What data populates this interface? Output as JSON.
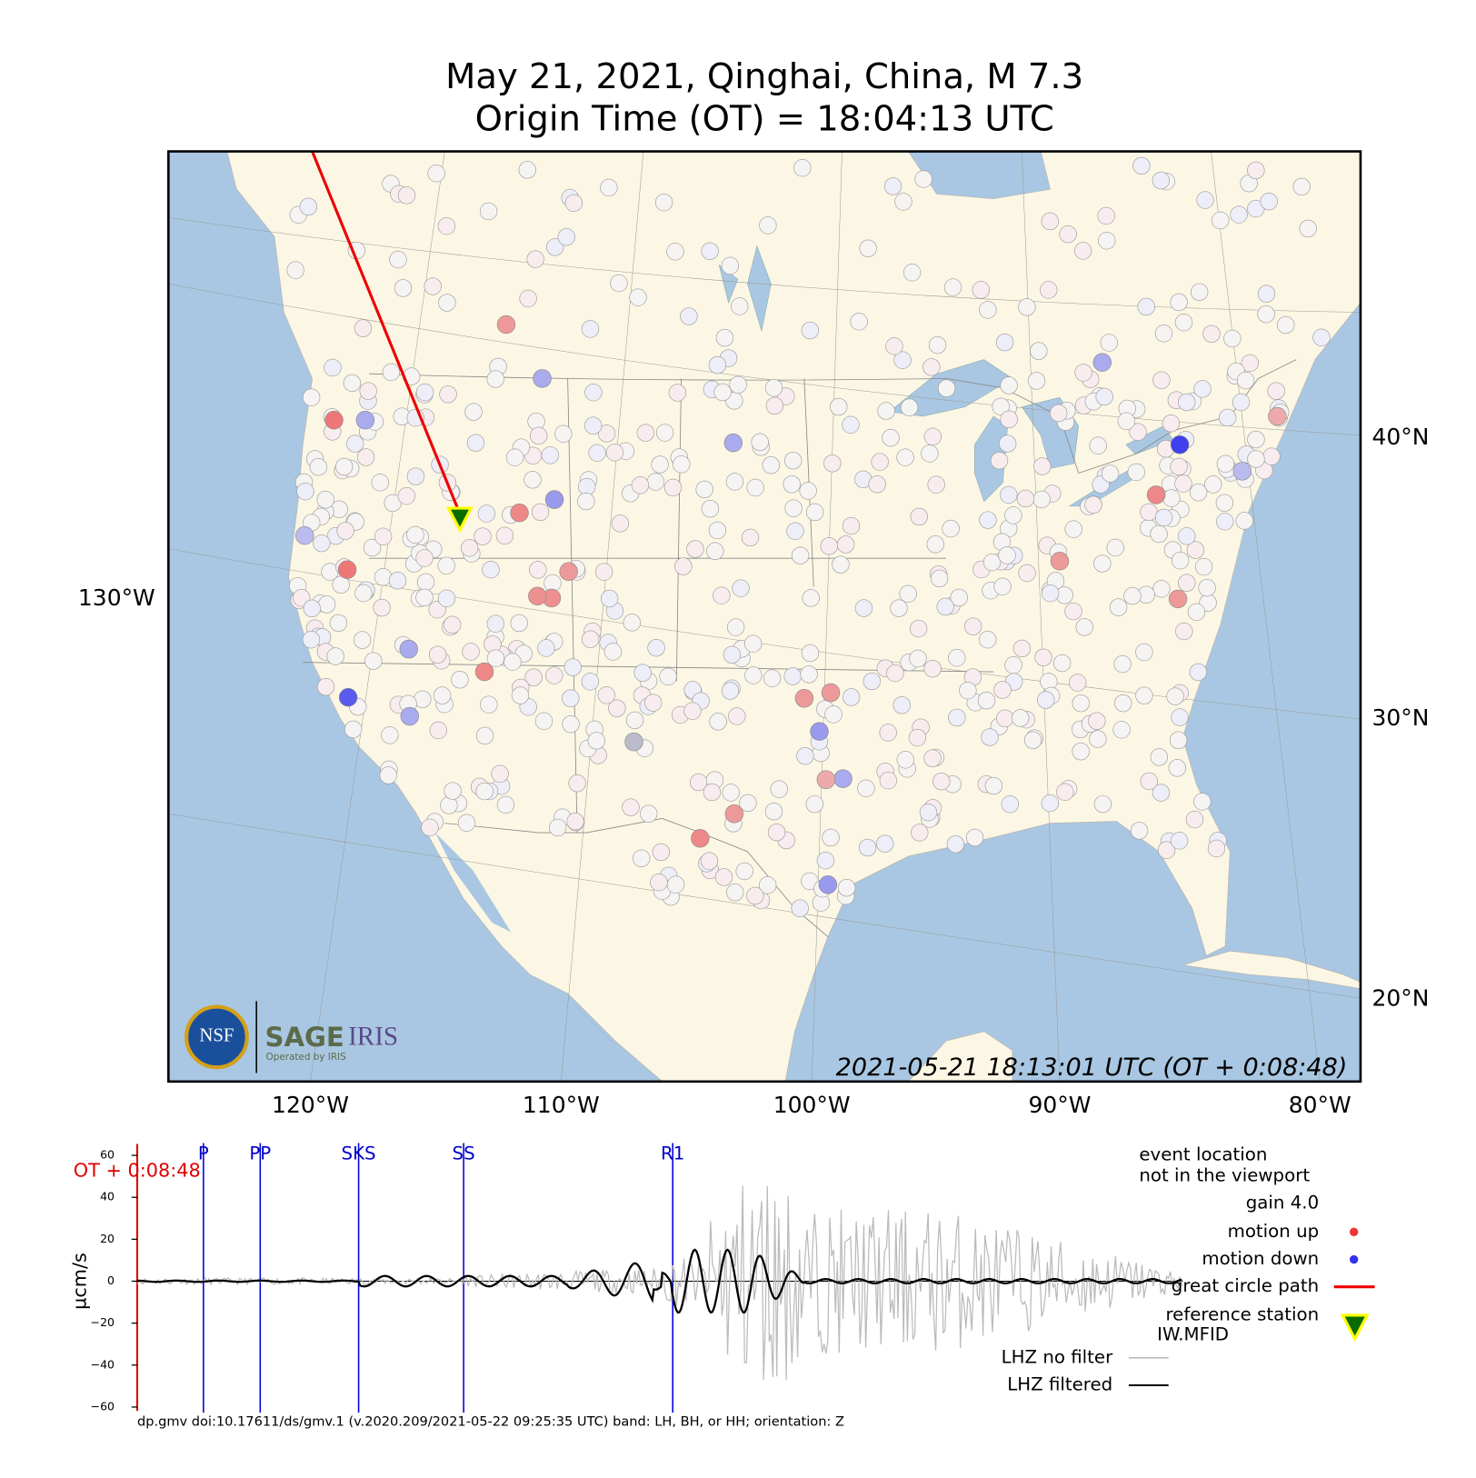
{
  "map": {
    "title_line1": "May 21, 2021, Qinghai, China, M 7.3",
    "title_line2": "Origin Time (OT) = 18:04:13 UTC",
    "lon_labels": [
      "120°W",
      "110°W",
      "100°W",
      "90°W",
      "80°W"
    ],
    "lat_labels": [
      "40°N",
      "30°N",
      "20°N"
    ],
    "west_label": "130°W",
    "timestamp": "2021-05-21 18:13:01 UTC (OT + 0:08:48)",
    "logo": {
      "nsf": "NSF",
      "sage": "SAGE",
      "iris": "IRIS",
      "operated": "Operated by IRIS"
    }
  },
  "chart_data": {
    "type": "line",
    "ylabel": "µcm/s",
    "ylim": [
      -60,
      60
    ],
    "yticks": [
      60,
      40,
      20,
      0,
      {
        "value": -20,
        "label": "−20"
      },
      {
        "value": -40,
        "label": "−40"
      },
      {
        "value": -60,
        "label": "−60"
      }
    ],
    "time_marker": "OT + 0:08:48",
    "phases": [
      "P",
      "PP",
      "SKS",
      "SS",
      "R1"
    ],
    "legend": {
      "event_1": "event location",
      "event_2": "not in the viewport",
      "gain": "gain  4.0",
      "up": "motion up",
      "down": "motion down",
      "path": "great circle path",
      "ref_1": "reference station",
      "ref_2": "IW.MFID",
      "raw": "LHZ no filter",
      "filtered": "LHZ filtered"
    },
    "footer": "dp.gmv doi:10.17611/ds/gmv.1 (v.2020.209/2021-05-22 09:25:35 UTC) band: LH, BH, or HH; orientation: Z"
  }
}
